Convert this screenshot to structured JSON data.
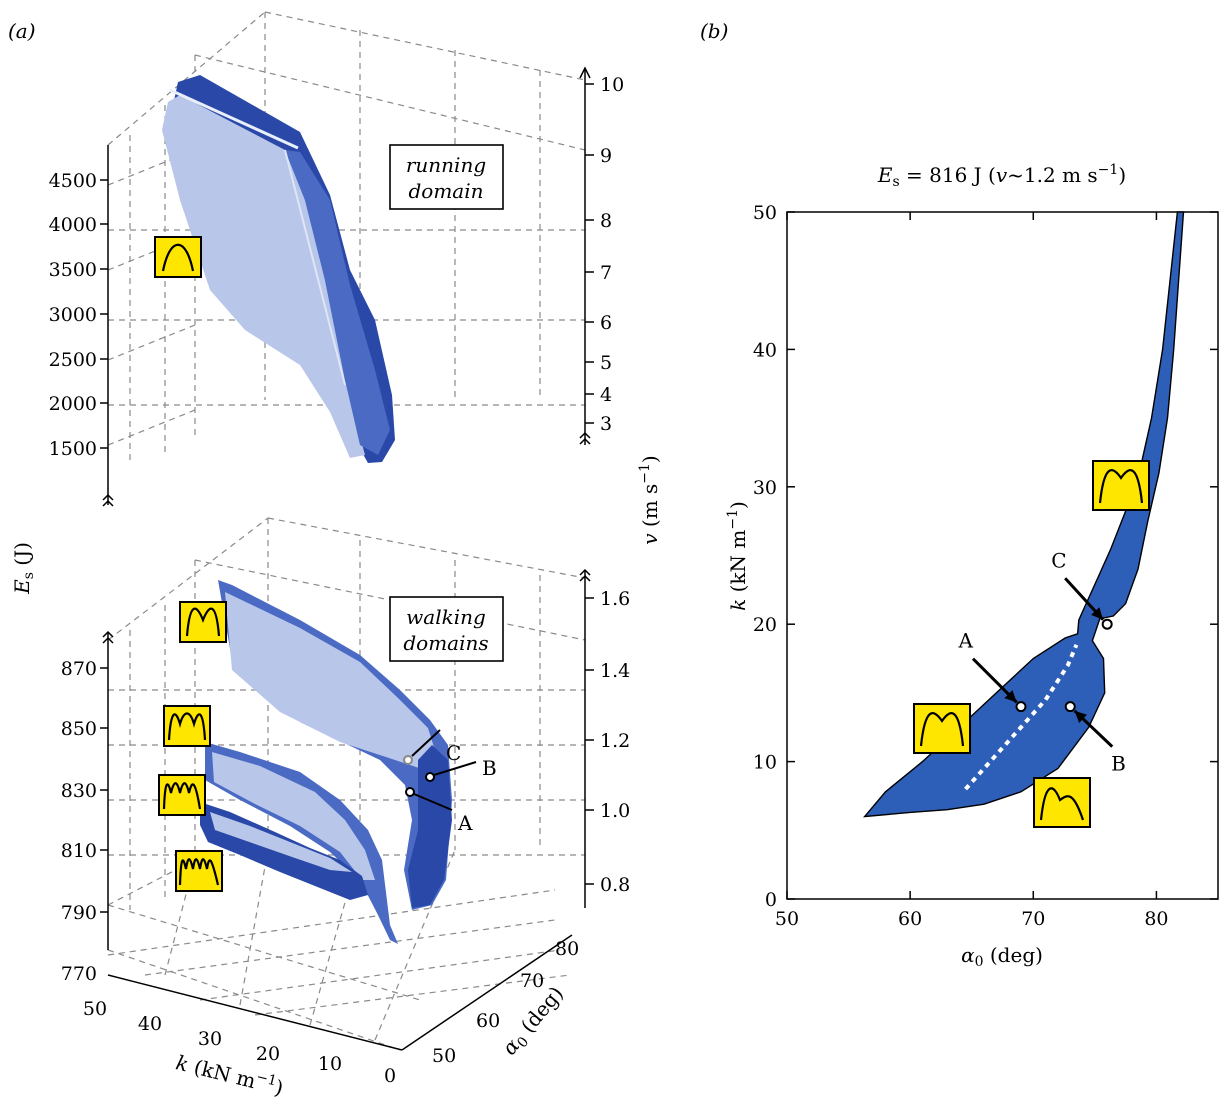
{
  "chart_data": [
    {
      "panel": "(a)",
      "type": "surface-3d",
      "subplots": [
        {
          "domain_label": [
            "running",
            "domain"
          ],
          "zlabel": "E_s (J)",
          "z_ticks": [
            "1500",
            "2000",
            "2500",
            "3000",
            "3500",
            "4000",
            "4500"
          ],
          "right_axis_label": "v (m s-1)",
          "right_axis_ticks": [
            "3",
            "4",
            "5",
            "6",
            "7",
            "8",
            "9",
            "10"
          ]
        },
        {
          "domain_label": [
            "walking",
            "domains"
          ],
          "z_ticks": [
            "770",
            "790",
            "810",
            "830",
            "850",
            "870"
          ],
          "right_axis_ticks": [
            "0.8",
            "1.0",
            "1.2",
            "1.4",
            "1.6"
          ],
          "xlabel": "k (kN m-1)",
          "x_ticks": [
            "50",
            "40",
            "30",
            "20",
            "10",
            "0"
          ],
          "ylabel": "α0 (deg)",
          "y_ticks": [
            "50",
            "60",
            "70",
            "80"
          ],
          "points": [
            "A",
            "B",
            "C"
          ]
        }
      ]
    },
    {
      "panel": "(b)",
      "type": "region",
      "title": "E_s = 816 J (v~1.2 m s-1)",
      "xlabel": "α0 (deg)",
      "ylabel": "k (kN m-1)",
      "xlim": [
        50,
        85
      ],
      "ylim": [
        0,
        50
      ],
      "x_ticks": [
        50,
        60,
        70,
        80
      ],
      "y_ticks": [
        0,
        10,
        20,
        30,
        40,
        50
      ],
      "region_boundary": [
        [
          56.3,
          6.0
        ],
        [
          60,
          6.3
        ],
        [
          63,
          6.5
        ],
        [
          66,
          6.9
        ],
        [
          69,
          7.8
        ],
        [
          72,
          9.5
        ],
        [
          74.5,
          12.5
        ],
        [
          75.8,
          15.0
        ],
        [
          75.7,
          17.5
        ],
        [
          74.8,
          18.8
        ],
        [
          75.4,
          20.4
        ],
        [
          76.5,
          20.6
        ],
        [
          77.5,
          21.5
        ],
        [
          78.5,
          24.0
        ],
        [
          79.3,
          27.5
        ],
        [
          80.2,
          31.0
        ],
        [
          80.9,
          35.0
        ],
        [
          81.4,
          40.0
        ],
        [
          81.8,
          45.0
        ],
        [
          82.2,
          50.0
        ],
        [
          81.7,
          50.0
        ],
        [
          81.1,
          45.0
        ],
        [
          80.5,
          40.0
        ],
        [
          79.6,
          35.0
        ],
        [
          78.6,
          31.0
        ],
        [
          77.4,
          28.0
        ],
        [
          76.3,
          25.5
        ],
        [
          75.3,
          23.5
        ],
        [
          74.3,
          21.5
        ],
        [
          73.7,
          20.3
        ],
        [
          73.6,
          19.3
        ],
        [
          72.6,
          19.0
        ],
        [
          70.0,
          17.5
        ],
        [
          67.0,
          15.0
        ],
        [
          64.0,
          12.5
        ],
        [
          61.0,
          10.0
        ],
        [
          58.0,
          7.8
        ]
      ],
      "dotted_curve": [
        [
          64.5,
          8.0
        ],
        [
          67.0,
          10.5
        ],
        [
          69.0,
          12.5
        ],
        [
          71.0,
          14.5
        ],
        [
          72.8,
          17.0
        ],
        [
          73.5,
          18.5
        ]
      ],
      "points": [
        {
          "label": "A",
          "alpha": 69,
          "k": 14
        },
        {
          "label": "B",
          "alpha": 73,
          "k": 14
        },
        {
          "label": "C",
          "alpha": 76,
          "k": 20
        }
      ]
    }
  ]
}
